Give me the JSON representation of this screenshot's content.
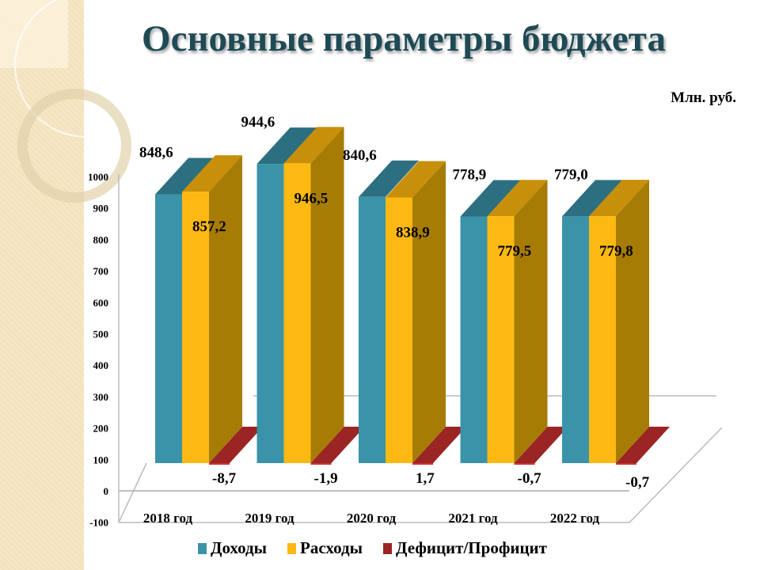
{
  "title": "Основные параметры бюджета",
  "unit_label": "Млн. руб.",
  "colors": {
    "income": "#3a93a8",
    "expense": "#fdb913",
    "deficit": "#9b2424"
  },
  "chart_data": {
    "type": "bar",
    "title": "Основные параметры бюджета",
    "ylabel": "Млн. руб.",
    "ylim": [
      -100,
      1000
    ],
    "yticks": [
      "1000",
      "900",
      "800",
      "700",
      "600",
      "500",
      "400",
      "300",
      "200",
      "100",
      "0",
      "-100"
    ],
    "categories": [
      "2018 год",
      "2019 год",
      "2020 год",
      "2021 год",
      "2022 год"
    ],
    "series": [
      {
        "name": "Доходы",
        "values": [
          848.6,
          944.6,
          840.6,
          778.9,
          779.0
        ],
        "labels": [
          "848,6",
          "944,6",
          "840,6",
          "778,9",
          "779,0"
        ]
      },
      {
        "name": "Расходы",
        "values": [
          857.2,
          946.5,
          838.9,
          779.5,
          779.8
        ],
        "labels": [
          "857,2",
          "946,5",
          "838,9",
          "779,5",
          "779,8"
        ]
      },
      {
        "name": "Дефицит/Профицит",
        "values": [
          -8.7,
          -1.9,
          1.7,
          -0.7,
          -0.7
        ],
        "labels": [
          "-8,7",
          "-1,9",
          "1,7",
          "-0,7",
          "-0,7"
        ]
      }
    ],
    "legend_position": "bottom"
  }
}
